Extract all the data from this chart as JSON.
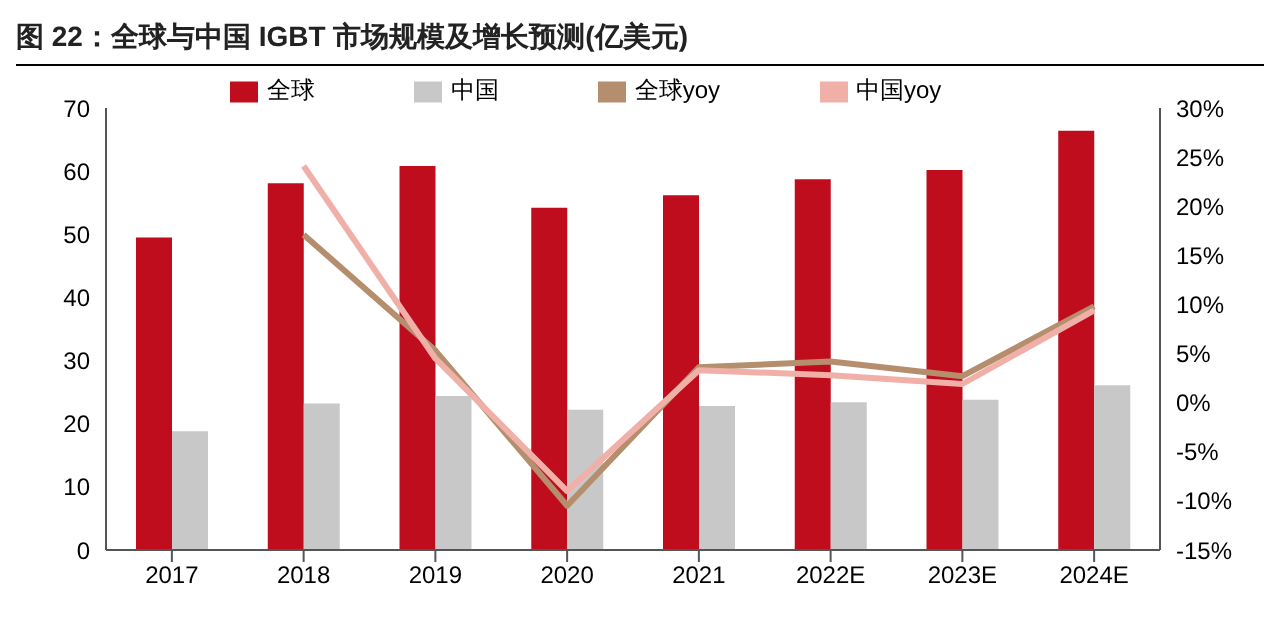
{
  "chart_data": {
    "type": "bar",
    "title": "图 22：全球与中国 IGBT 市场规模及增长预测(亿美元)",
    "categories": [
      "2017",
      "2018",
      "2019",
      "2020",
      "2021",
      "2022E",
      "2023E",
      "2024E"
    ],
    "series": [
      {
        "name": "全球",
        "color": "#c00d1e",
        "values": [
          49.5,
          58.1,
          60.8,
          54.2,
          56.2,
          58.7,
          60.2,
          66.4
        ]
      },
      {
        "name": "中国",
        "color": "#c8c8c8",
        "values": [
          18.8,
          23.2,
          24.4,
          22.2,
          22.8,
          23.4,
          23.8,
          26.1
        ]
      },
      {
        "name": "全球yoy",
        "type": "line",
        "axis": "y2",
        "color": "#b58e6e",
        "values": [
          null,
          17.1,
          5.3,
          -10.5,
          3.6,
          4.2,
          2.7,
          9.8
        ]
      },
      {
        "name": "中国yoy",
        "type": "line",
        "axis": "y2",
        "color": "#f0b0a8",
        "values": [
          null,
          24.1,
          4.5,
          -9,
          3.3,
          2.8,
          1.9,
          9.4
        ]
      }
    ],
    "ylim": [
      0,
      70
    ],
    "yticks": [
      0,
      10,
      20,
      30,
      40,
      50,
      60,
      70
    ],
    "y2lim": [
      -15,
      30
    ],
    "y2ticks": [
      {
        "value": -15,
        "label": "-15%"
      },
      {
        "value": -10,
        "label": "-10%"
      },
      {
        "value": -5,
        "label": "-5%"
      },
      {
        "value": 0,
        "label": "0%"
      },
      {
        "value": 5,
        "label": "5%"
      },
      {
        "value": 10,
        "label": "10%"
      },
      {
        "value": 15,
        "label": "15%"
      },
      {
        "value": 20,
        "label": "20%"
      },
      {
        "value": 25,
        "label": "25%"
      },
      {
        "value": 30,
        "label": "30%"
      }
    ],
    "legend": "top",
    "grid": false,
    "marker": "none"
  }
}
